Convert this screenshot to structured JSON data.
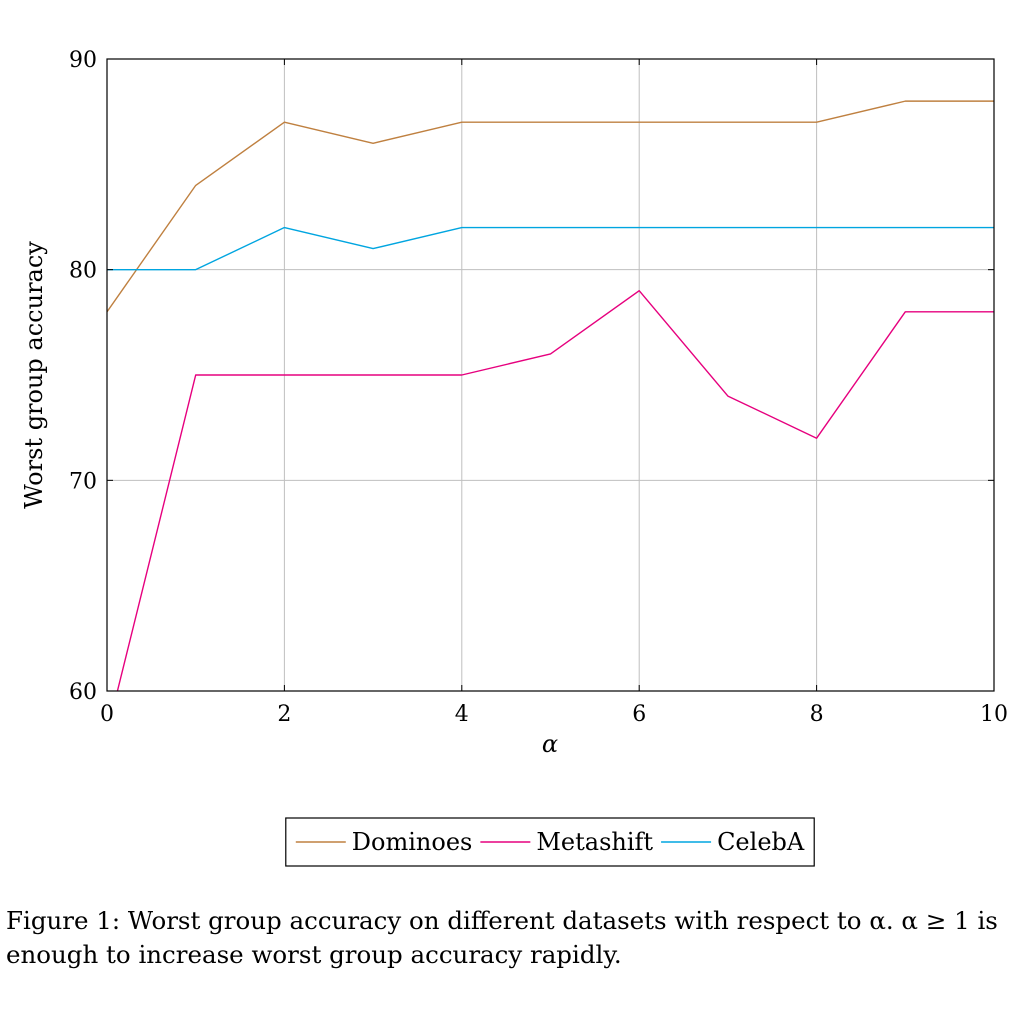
{
  "chart_data": {
    "type": "line",
    "xlabel": "α",
    "ylabel": "Worst group accuracy",
    "xlim": [
      0,
      10
    ],
    "ylim": [
      60,
      90
    ],
    "xticks": [
      0,
      2,
      4,
      6,
      8,
      10
    ],
    "yticks": [
      60,
      70,
      80,
      90
    ],
    "grid": true,
    "legend_position": "bottom-center",
    "series": [
      {
        "name": "Dominoes",
        "color": "#bf8040",
        "x": [
          0,
          1,
          2,
          3,
          4,
          5,
          6,
          7,
          8,
          9,
          10
        ],
        "values": [
          78,
          84,
          87,
          86,
          87,
          87,
          87,
          87,
          87,
          88,
          88
        ]
      },
      {
        "name": "Metashift",
        "color": "#e6007e",
        "x": [
          0,
          1,
          2,
          3,
          4,
          5,
          6,
          7,
          8,
          9,
          10
        ],
        "values": [
          58,
          75,
          75,
          75,
          75,
          76,
          79,
          74,
          72,
          78,
          78
        ]
      },
      {
        "name": "CelebA",
        "color": "#00a5e0",
        "x": [
          0,
          1,
          2,
          3,
          4,
          5,
          6,
          7,
          8,
          9,
          10
        ],
        "values": [
          80,
          80,
          82,
          81,
          82,
          82,
          82,
          82,
          82,
          82,
          82
        ]
      }
    ]
  },
  "caption": "Figure 1: Worst group accuracy on different datasets with respect to α. α ≥ 1 is enough to increase worst group accuracy rapidly."
}
